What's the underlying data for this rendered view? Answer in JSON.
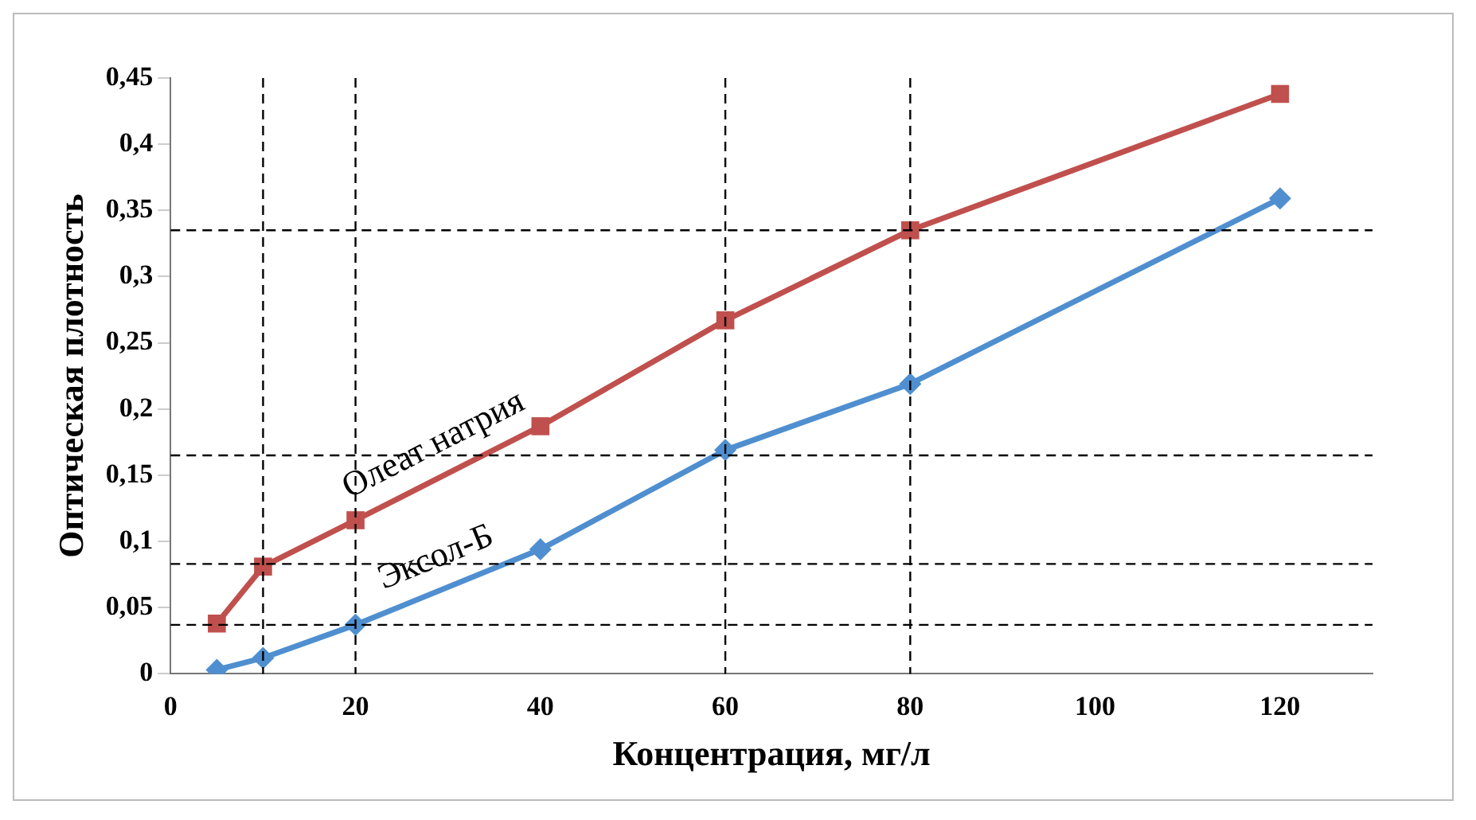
{
  "chart_data": {
    "type": "line",
    "xlabel": "Концентрация, мг/л",
    "ylabel": "Оптическая плотность",
    "x": [
      5,
      10,
      20,
      40,
      60,
      80,
      120
    ],
    "series": [
      {
        "name": "Олеат натрия",
        "color": "#c0504d",
        "marker": "square",
        "values": [
          0.038,
          0.081,
          0.116,
          0.187,
          0.267,
          0.335,
          0.438
        ]
      },
      {
        "name": "Эксол-Б",
        "color": "#4f8fd0",
        "marker": "diamond",
        "values": [
          0.003,
          0.012,
          0.037,
          0.094,
          0.169,
          0.219,
          0.359
        ]
      }
    ],
    "xlim": [
      0,
      130
    ],
    "xticks": [
      0,
      20,
      40,
      60,
      80,
      100,
      120
    ],
    "ylim": [
      0,
      0.45
    ],
    "yticks": [
      {
        "value": 0,
        "label": "0"
      },
      {
        "value": 0.05,
        "label": "0,05"
      },
      {
        "value": 0.1,
        "label": "0,1"
      },
      {
        "value": 0.15,
        "label": "0,15"
      },
      {
        "value": 0.2,
        "label": "0,2"
      },
      {
        "value": 0.25,
        "label": "0,25"
      },
      {
        "value": 0.3,
        "label": "0,3"
      },
      {
        "value": 0.35,
        "label": "0,35"
      },
      {
        "value": 0.4,
        "label": "0,4"
      },
      {
        "value": 0.45,
        "label": "0,45"
      }
    ],
    "ref_lines": [
      {
        "axis": "y",
        "value": 0.335,
        "color": "#000000",
        "line_style": "dashed"
      },
      {
        "axis": "y",
        "value": 0.165,
        "color": "#000000",
        "line_style": "dashed"
      },
      {
        "axis": "y",
        "value": 0.083,
        "color": "#000000",
        "line_style": "dashed"
      },
      {
        "axis": "y",
        "value": 0.037,
        "color": "#000000",
        "line_style": "dashed"
      },
      {
        "axis": "x",
        "value": 10,
        "color": "#000000",
        "line_style": "dashed"
      },
      {
        "axis": "x",
        "value": 20,
        "color": "#000000",
        "line_style": "dashed"
      },
      {
        "axis": "x",
        "value": 60,
        "color": "#000000",
        "line_style": "dashed"
      },
      {
        "axis": "x",
        "value": 80,
        "color": "#000000",
        "line_style": "dashed"
      }
    ],
    "grid": false,
    "legend": false,
    "line_style": "solid"
  }
}
